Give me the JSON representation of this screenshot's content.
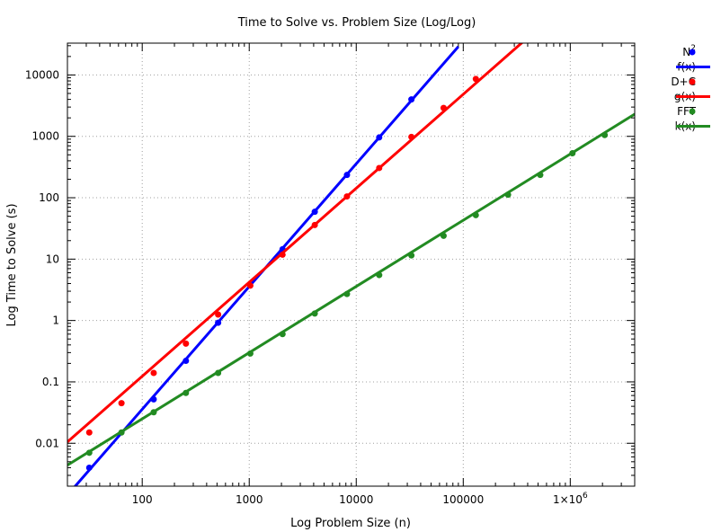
{
  "chart_data": {
    "type": "scatter",
    "title": "Time to Solve vs. Problem Size (Log/Log)",
    "xlabel": "Log Problem Size (n)",
    "ylabel": "Log Time to Solve (s)",
    "x_scale": "log",
    "y_scale": "log",
    "xlim": [
      20,
      4000000
    ],
    "ylim": [
      0.002,
      33000
    ],
    "grid": true,
    "legend_position": "outside-right",
    "x_ticks": [
      {
        "value": 100,
        "label": "100"
      },
      {
        "value": 1000,
        "label": "1000"
      },
      {
        "value": 10000,
        "label": "10000"
      },
      {
        "value": 100000,
        "label": "100000"
      },
      {
        "value": 1000000,
        "label": "1×10",
        "sup": "6"
      }
    ],
    "y_ticks": [
      {
        "value": 0.01,
        "label": "0.01"
      },
      {
        "value": 0.1,
        "label": "0.1"
      },
      {
        "value": 1,
        "label": "1"
      },
      {
        "value": 10,
        "label": "10"
      },
      {
        "value": 100,
        "label": "100"
      },
      {
        "value": 1000,
        "label": "1000"
      },
      {
        "value": 10000,
        "label": "10000"
      }
    ],
    "series": [
      {
        "name": "N",
        "name_sup": "2",
        "kind": "points",
        "color": "#0000ff",
        "x": [
          32,
          128,
          256,
          512,
          2048,
          4096,
          8192,
          16384,
          32768
        ],
        "y": [
          0.004,
          0.052,
          0.22,
          0.92,
          14.5,
          59,
          235,
          960,
          4000
        ]
      },
      {
        "name": "f(x)",
        "kind": "line",
        "color": "#0000ff",
        "x": [
          20,
          90000
        ],
        "y": [
          0.00143,
          29000
        ]
      },
      {
        "name": "D+C",
        "kind": "points",
        "color": "#ff0000",
        "x": [
          32,
          64,
          128,
          256,
          512,
          1024,
          2048,
          4096,
          8192,
          16384,
          32768,
          65536,
          131072
        ],
        "y": [
          0.015,
          0.045,
          0.14,
          0.42,
          1.25,
          3.7,
          11.8,
          36,
          105,
          305,
          980,
          2900,
          8600
        ]
      },
      {
        "name": "g(x)",
        "kind": "line",
        "color": "#ff0000",
        "x": [
          20,
          500000
        ],
        "y": [
          0.0105,
          57000
        ]
      },
      {
        "name": "FFT",
        "kind": "points",
        "color": "#228b22",
        "x": [
          32,
          64,
          128,
          256,
          512,
          1024,
          2048,
          4096,
          8192,
          16384,
          32768,
          65536,
          131072,
          262144,
          524288,
          1048576,
          2097152
        ],
        "y": [
          0.007,
          0.015,
          0.032,
          0.066,
          0.14,
          0.29,
          0.6,
          1.3,
          2.7,
          5.5,
          11.5,
          24,
          52,
          112,
          235,
          530,
          1050
        ]
      },
      {
        "name": "k(x)",
        "kind": "line",
        "color": "#228b22",
        "x": [
          20,
          4000000
        ],
        "y": [
          0.0044,
          2300
        ]
      }
    ]
  }
}
